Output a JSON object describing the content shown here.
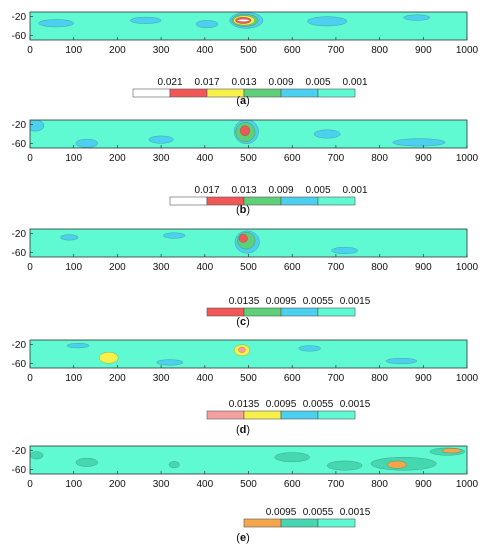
{
  "colors": {
    "background": "#5ffad2",
    "frame": "#333333",
    "level_colors": [
      "#ffffff",
      "#f25757",
      "#f5f04a",
      "#5fd07a",
      "#4cd0f0",
      "#5ffad2",
      "#f5a0a0",
      "#f5a64a",
      "#45d8b0"
    ]
  },
  "chart_data": [
    {
      "type": "heatmap",
      "panel": "(a)",
      "caption_letter": "a",
      "xlim": [
        0,
        1000
      ],
      "ylim": [
        -70,
        -10
      ],
      "xticks": [
        0,
        100,
        200,
        300,
        400,
        500,
        600,
        700,
        800,
        900,
        1000
      ],
      "yticks": [
        -20,
        -60
      ],
      "legend_levels": [
        "0.021",
        "0.017",
        "0.013",
        "0.009",
        "0.005",
        "0.001"
      ],
      "legend_colors": [
        "#ffffff",
        "#f25757",
        "#f5f04a",
        "#5fd07a",
        "#4cd0f0",
        "#5ffad2"
      ],
      "blobs": [
        {
          "x": 495,
          "y": -28,
          "rx": 38,
          "ry": 17,
          "color": "#4cd0f0"
        },
        {
          "x": 492,
          "y": -28,
          "rx": 30,
          "ry": 13,
          "color": "#5fd07a"
        },
        {
          "x": 490,
          "y": -28,
          "rx": 24,
          "ry": 10,
          "color": "#f5f04a"
        },
        {
          "x": 488,
          "y": -28,
          "rx": 18,
          "ry": 7,
          "color": "#f25757"
        },
        {
          "x": 488,
          "y": -28,
          "rx": 14,
          "ry": 2.5,
          "color": "#ffffff"
        },
        {
          "x": 60,
          "y": -34,
          "rx": 40,
          "ry": 8,
          "color": "#4cd0f0"
        },
        {
          "x": 265,
          "y": -28,
          "rx": 35,
          "ry": 7,
          "color": "#4cd0f0"
        },
        {
          "x": 405,
          "y": -36,
          "rx": 25,
          "ry": 8,
          "color": "#4cd0f0"
        },
        {
          "x": 680,
          "y": -30,
          "rx": 45,
          "ry": 10,
          "color": "#4cd0f0"
        },
        {
          "x": 885,
          "y": -22,
          "rx": 30,
          "ry": 6,
          "color": "#4cd0f0"
        }
      ]
    },
    {
      "type": "heatmap",
      "panel": "(b)",
      "caption_letter": "b",
      "xlim": [
        0,
        1000
      ],
      "ylim": [
        -70,
        -10
      ],
      "xticks": [
        0,
        100,
        200,
        300,
        400,
        500,
        600,
        700,
        800,
        900,
        1000
      ],
      "yticks": [
        -20,
        -60
      ],
      "legend_levels": [
        "0.017",
        "0.013",
        "0.009",
        "0.005",
        "0.001"
      ],
      "legend_colors": [
        "#ffffff",
        "#f25757",
        "#5fd07a",
        "#4cd0f0",
        "#5ffad2"
      ],
      "blobs": [
        {
          "x": 495,
          "y": -35,
          "rx": 28,
          "ry": 26,
          "color": "#4cd0f0"
        },
        {
          "x": 493,
          "y": -36,
          "rx": 22,
          "ry": 21,
          "color": "#5fd07a"
        },
        {
          "x": 492,
          "y": -33,
          "rx": 11,
          "ry": 11,
          "color": "#f25757"
        },
        {
          "x": 12,
          "y": -22,
          "rx": 20,
          "ry": 12,
          "color": "#4cd0f0"
        },
        {
          "x": 130,
          "y": -60,
          "rx": 25,
          "ry": 9,
          "color": "#4cd0f0"
        },
        {
          "x": 300,
          "y": -52,
          "rx": 28,
          "ry": 8,
          "color": "#4cd0f0"
        },
        {
          "x": 680,
          "y": -40,
          "rx": 30,
          "ry": 9,
          "color": "#4cd0f0"
        },
        {
          "x": 890,
          "y": -58,
          "rx": 60,
          "ry": 8,
          "color": "#4cd0f0"
        }
      ]
    },
    {
      "type": "heatmap",
      "panel": "(c)",
      "caption_letter": "c",
      "xlim": [
        0,
        1000
      ],
      "ylim": [
        -70,
        -10
      ],
      "xticks": [
        0,
        100,
        200,
        300,
        400,
        500,
        600,
        700,
        800,
        900,
        1000
      ],
      "yticks": [
        -20,
        -60
      ],
      "legend_levels": [
        "0.0135",
        "0.0095",
        "0.0055",
        "0.0015"
      ],
      "legend_colors": [
        "#f25757",
        "#5fd07a",
        "#4cd0f0",
        "#5ffad2"
      ],
      "blobs": [
        {
          "x": 497,
          "y": -38,
          "rx": 28,
          "ry": 24,
          "color": "#4cd0f0"
        },
        {
          "x": 495,
          "y": -35,
          "rx": 20,
          "ry": 18,
          "color": "#5fd07a"
        },
        {
          "x": 488,
          "y": -30,
          "rx": 10,
          "ry": 9,
          "color": "#f25757"
        },
        {
          "x": 90,
          "y": -28,
          "rx": 20,
          "ry": 6,
          "color": "#4cd0f0"
        },
        {
          "x": 330,
          "y": -24,
          "rx": 25,
          "ry": 6,
          "color": "#4cd0f0"
        },
        {
          "x": 720,
          "y": -56,
          "rx": 30,
          "ry": 7,
          "color": "#4cd0f0"
        }
      ]
    },
    {
      "type": "heatmap",
      "panel": "(d)",
      "caption_letter": "d",
      "xlim": [
        0,
        1000
      ],
      "ylim": [
        -70,
        -10
      ],
      "xticks": [
        0,
        100,
        200,
        300,
        400,
        500,
        600,
        700,
        800,
        900,
        1000
      ],
      "yticks": [
        -20,
        -60
      ],
      "legend_levels": [
        "0.0135",
        "0.0095",
        "0.0055",
        "0.0015"
      ],
      "legend_colors": [
        "#f5a0a0",
        "#f5f04a",
        "#4cd0f0",
        "#5ffad2"
      ],
      "blobs": [
        {
          "x": 180,
          "y": -48,
          "rx": 22,
          "ry": 12,
          "color": "#f5f04a"
        },
        {
          "x": 485,
          "y": -32,
          "rx": 18,
          "ry": 12,
          "color": "#f5f04a"
        },
        {
          "x": 485,
          "y": -31,
          "rx": 8,
          "ry": 6,
          "color": "#f5a0a0"
        },
        {
          "x": 110,
          "y": -22,
          "rx": 25,
          "ry": 5,
          "color": "#4cd0f0"
        },
        {
          "x": 320,
          "y": -58,
          "rx": 30,
          "ry": 6,
          "color": "#4cd0f0"
        },
        {
          "x": 640,
          "y": -28,
          "rx": 25,
          "ry": 6,
          "color": "#4cd0f0"
        },
        {
          "x": 850,
          "y": -55,
          "rx": 35,
          "ry": 6,
          "color": "#4cd0f0"
        }
      ]
    },
    {
      "type": "heatmap",
      "panel": "(e)",
      "caption_letter": "e",
      "xlim": [
        0,
        1000
      ],
      "ylim": [
        -70,
        -10
      ],
      "xticks": [
        0,
        100,
        200,
        300,
        400,
        500,
        600,
        700,
        800,
        900,
        1000
      ],
      "yticks": [
        -20,
        -60
      ],
      "legend_levels": [
        "0.0095",
        "0.0055",
        "0.0015"
      ],
      "legend_colors": [
        "#f5a64a",
        "#45d8b0",
        "#5ffad2"
      ],
      "blobs": [
        {
          "x": 130,
          "y": -45,
          "rx": 25,
          "ry": 9,
          "color": "#45d8b0"
        },
        {
          "x": 330,
          "y": -50,
          "rx": 12,
          "ry": 7,
          "color": "#45d8b0"
        },
        {
          "x": 600,
          "y": -34,
          "rx": 40,
          "ry": 10,
          "color": "#45d8b0"
        },
        {
          "x": 720,
          "y": -52,
          "rx": 40,
          "ry": 10,
          "color": "#45d8b0"
        },
        {
          "x": 855,
          "y": -48,
          "rx": 75,
          "ry": 14,
          "color": "#45d8b0"
        },
        {
          "x": 840,
          "y": -50,
          "rx": 22,
          "ry": 8,
          "color": "#f5a64a"
        },
        {
          "x": 955,
          "y": -22,
          "rx": 40,
          "ry": 8,
          "color": "#45d8b0"
        },
        {
          "x": 965,
          "y": -20,
          "rx": 22,
          "ry": 5,
          "color": "#f5a64a"
        },
        {
          "x": 15,
          "y": -30,
          "rx": 15,
          "ry": 8,
          "color": "#45d8b0"
        }
      ]
    }
  ]
}
